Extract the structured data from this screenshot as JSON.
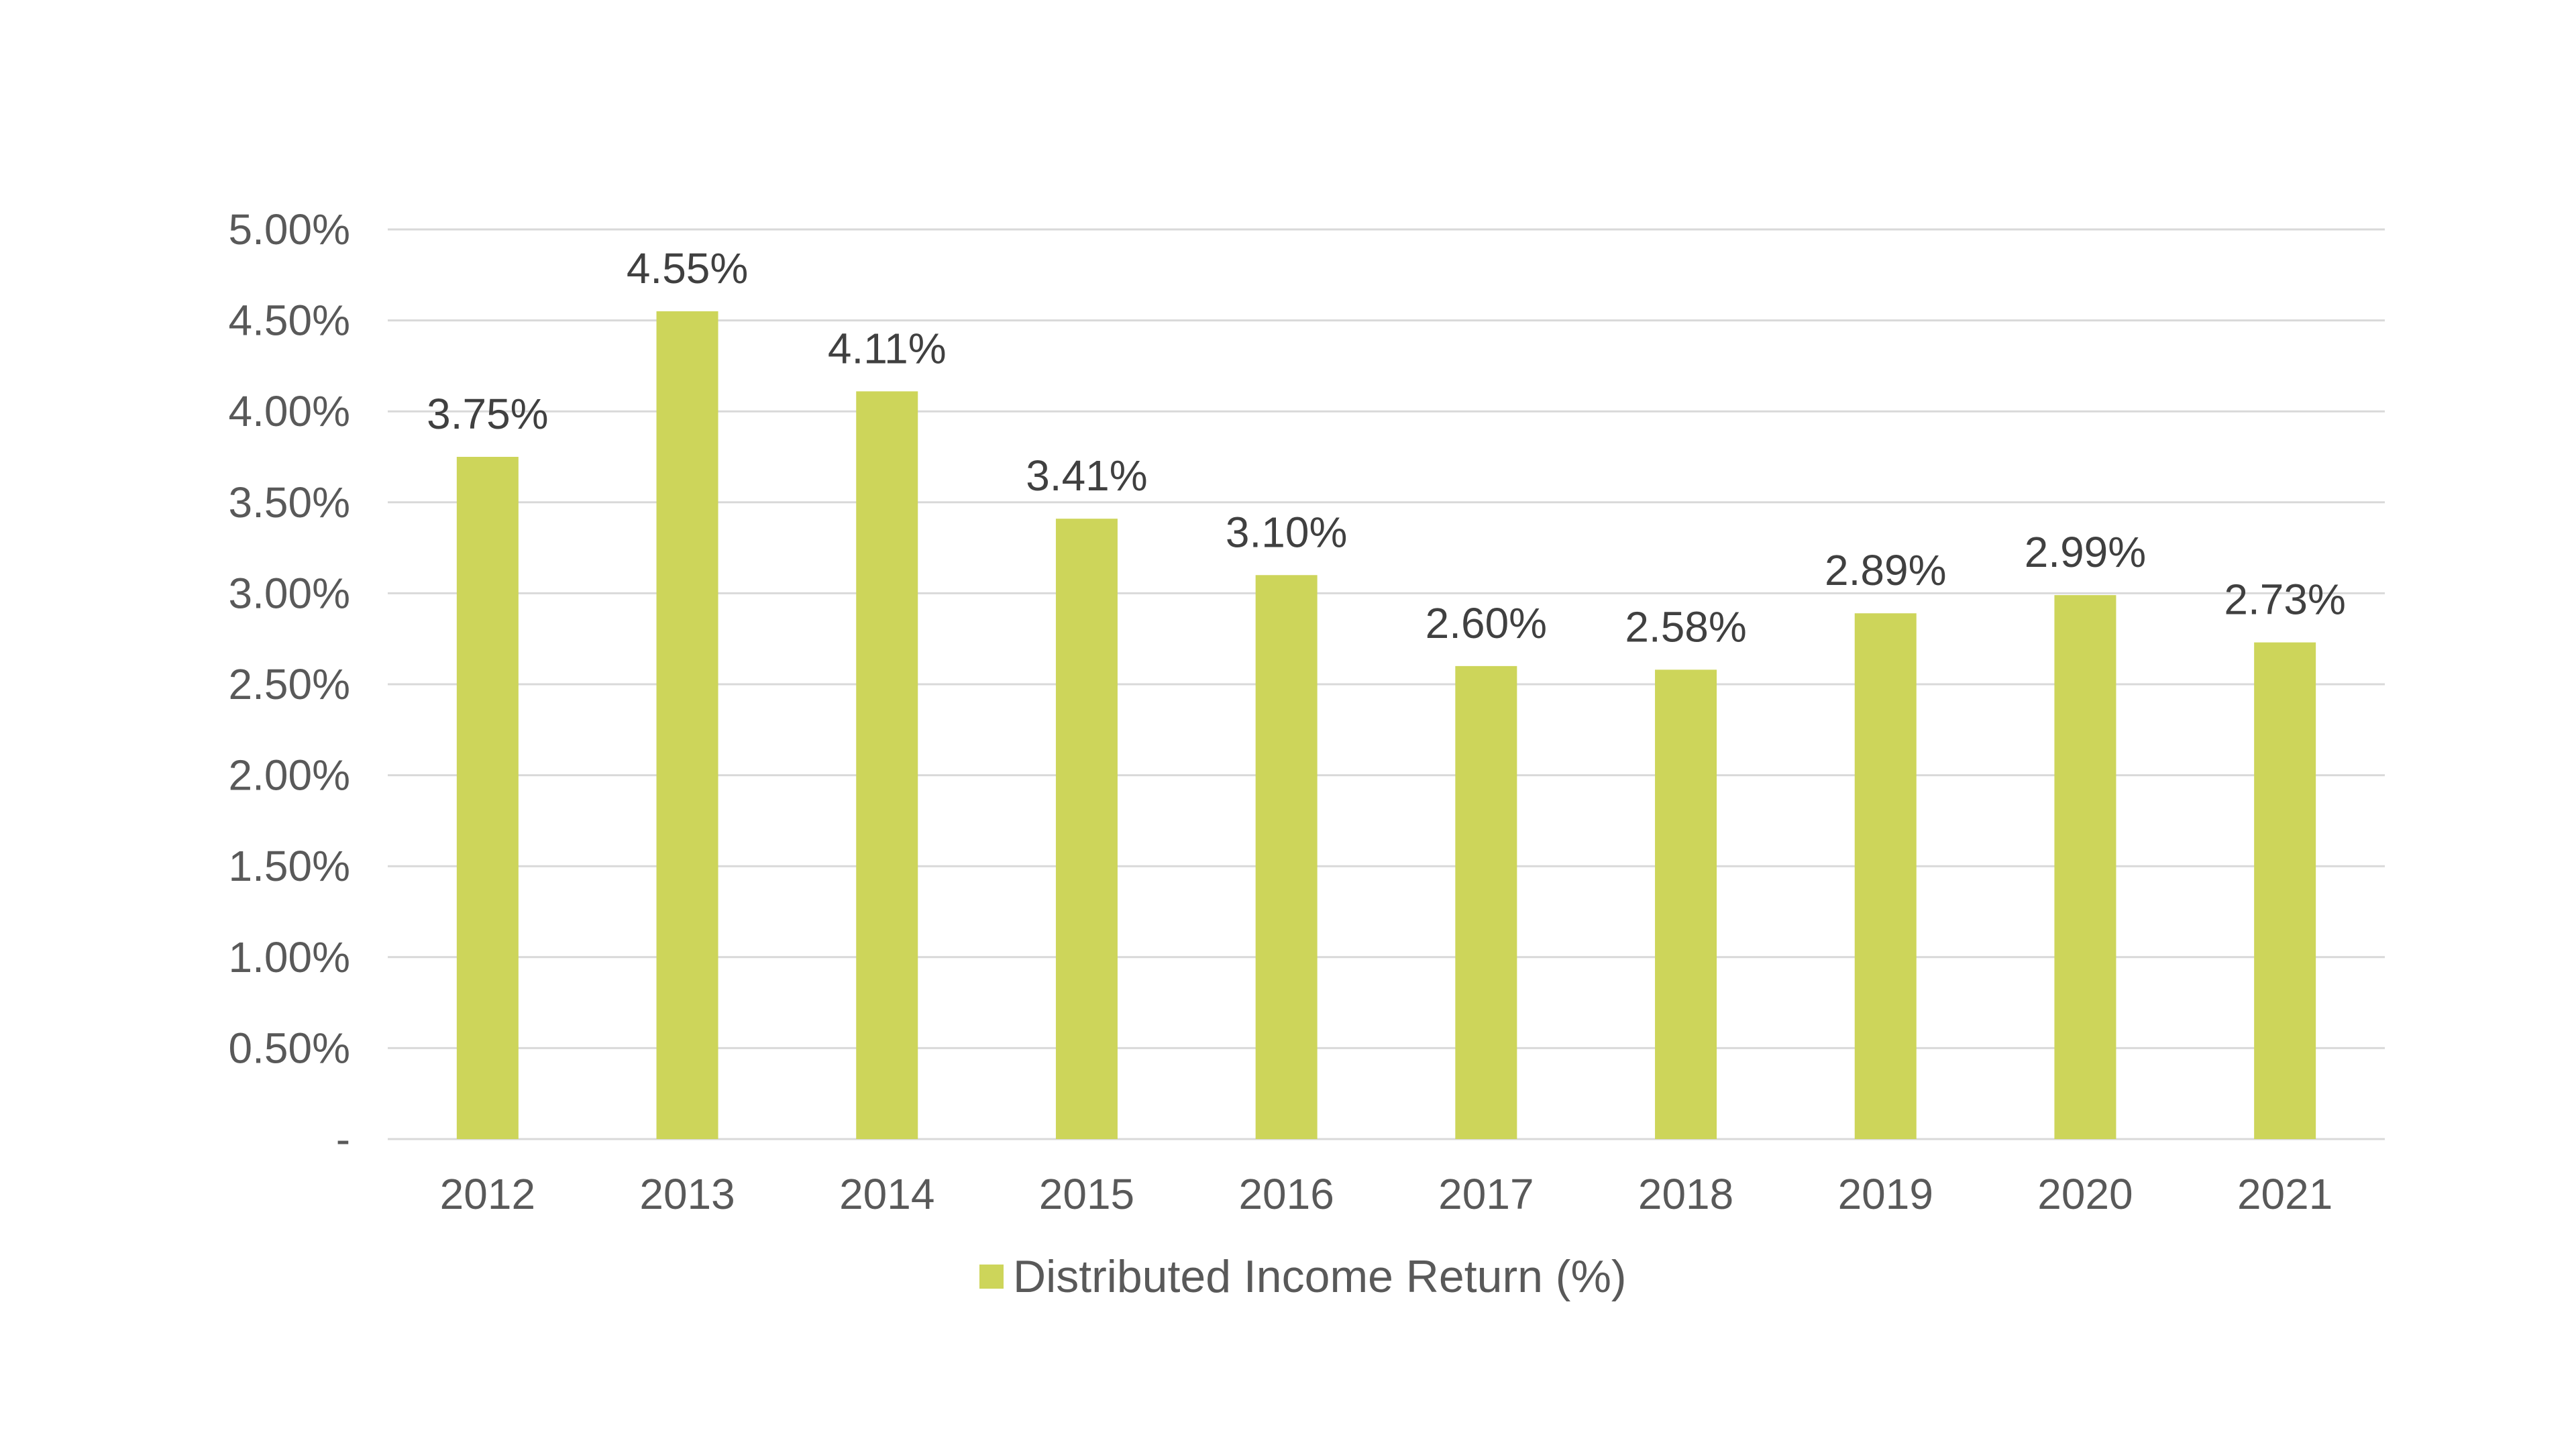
{
  "chart_data": {
    "type": "bar",
    "categories": [
      "2012",
      "2013",
      "2014",
      "2015",
      "2016",
      "2017",
      "2018",
      "2019",
      "2020",
      "2021"
    ],
    "series": [
      {
        "name": "Distributed Income Return (%)",
        "values": [
          3.75,
          4.55,
          4.11,
          3.41,
          3.1,
          2.6,
          2.58,
          2.89,
          2.99,
          2.73
        ],
        "data_labels": [
          "3.75%",
          "4.55%",
          "4.11%",
          "3.41%",
          "3.10%",
          "2.60%",
          "2.58%",
          "2.89%",
          "2.99%",
          "2.73%"
        ],
        "color": "#cdd55a"
      }
    ],
    "ylim": [
      0,
      5
    ],
    "yticks": [
      0,
      0.5,
      1.0,
      1.5,
      2.0,
      2.5,
      3.0,
      3.5,
      4.0,
      4.5,
      5.0
    ],
    "ytick_labels": [
      "-",
      "0.50%",
      "1.00%",
      "1.50%",
      "2.00%",
      "2.50%",
      "3.00%",
      "3.50%",
      "4.00%",
      "4.50%",
      "5.00%"
    ],
    "title": "",
    "xlabel": "",
    "ylabel": "",
    "grid": true,
    "legend_position": "bottom",
    "gridline_color": "#d9d9d9"
  }
}
